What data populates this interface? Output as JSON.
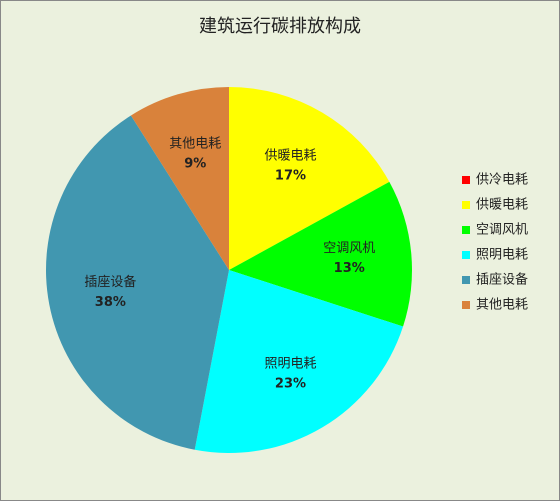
{
  "chart_data": {
    "type": "pie",
    "title": "建筑运行碳排放构成",
    "categories": [
      "供冷电耗",
      "供暖电耗",
      "空调风机",
      "照明电耗",
      "插座设备",
      "其他电耗"
    ],
    "values": [
      0,
      17,
      13,
      23,
      38,
      9
    ],
    "value_labels": [
      null,
      "17%",
      "13%",
      "23%",
      "38%",
      "9%"
    ],
    "colors": [
      "#ff0000",
      "#ffff00",
      "#00ff00",
      "#00ffff",
      "#4197b0",
      "#d9823b"
    ],
    "legend": "right"
  }
}
